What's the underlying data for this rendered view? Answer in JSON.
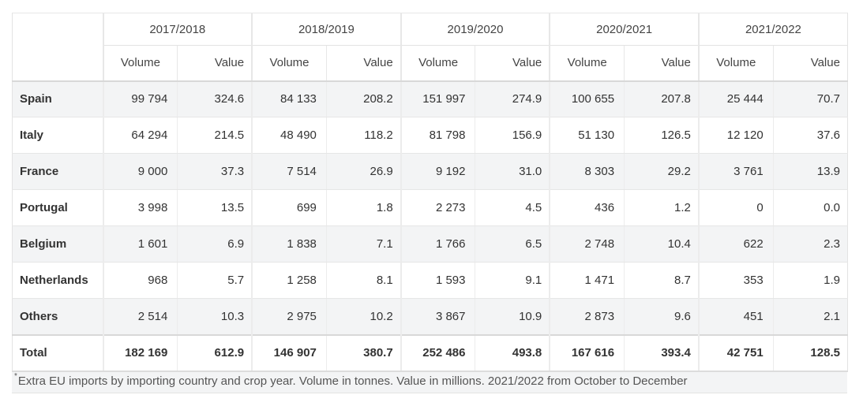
{
  "years": [
    "2017/2018",
    "2018/2019",
    "2019/2020",
    "2020/2021",
    "2021/2022"
  ],
  "sub_headers": {
    "volume": "Volume",
    "value": "Value"
  },
  "rows": [
    {
      "name": "Spain",
      "cells": [
        "99 794",
        "324.6",
        "84 133",
        "208.2",
        "151 997",
        "274.9",
        "100 655",
        "207.8",
        "25 444",
        "70.7"
      ]
    },
    {
      "name": "Italy",
      "cells": [
        "64 294",
        "214.5",
        "48 490",
        "118.2",
        "81 798",
        "156.9",
        "51 130",
        "126.5",
        "12 120",
        "37.6"
      ]
    },
    {
      "name": "France",
      "cells": [
        "9 000",
        "37.3",
        "7 514",
        "26.9",
        "9 192",
        "31.0",
        "8 303",
        "29.2",
        "3 761",
        "13.9"
      ]
    },
    {
      "name": "Portugal",
      "cells": [
        "3 998",
        "13.5",
        "699",
        "1.8",
        "2 273",
        "4.5",
        "436",
        "1.2",
        "0",
        "0.0"
      ]
    },
    {
      "name": "Belgium",
      "cells": [
        "1 601",
        "6.9",
        "1 838",
        "7.1",
        "1 766",
        "6.5",
        "2 748",
        "10.4",
        "622",
        "2.3"
      ]
    },
    {
      "name": "Netherlands",
      "cells": [
        "968",
        "5.7",
        "1 258",
        "8.1",
        "1 593",
        "9.1",
        "1 471",
        "8.7",
        "353",
        "1.9"
      ]
    },
    {
      "name": "Others",
      "cells": [
        "2 514",
        "10.3",
        "2 975",
        "10.2",
        "3 867",
        "10.9",
        "2 873",
        "9.6",
        "451",
        "2.1"
      ]
    },
    {
      "name": "Total",
      "cells": [
        "182 169",
        "612.9",
        "146 907",
        "380.7",
        "252 486",
        "493.8",
        "167 616",
        "393.4",
        "42 751",
        "128.5"
      ]
    }
  ],
  "note": {
    "marker": "*",
    "text": "Extra EU imports by importing country and crop year. Volume in tonnes. Value in millions. 2021/2022 from October to December"
  }
}
